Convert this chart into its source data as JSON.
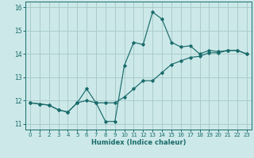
{
  "title": "",
  "xlabel": "Humidex (Indice chaleur)",
  "bg_color": "#cce8e8",
  "grid_color": "#aacccc",
  "line_color": "#1a6b6b",
  "xlim": [
    -0.5,
    23.5
  ],
  "ylim": [
    10.75,
    16.25
  ],
  "yticks": [
    11,
    12,
    13,
    14,
    15,
    16
  ],
  "xticks": [
    0,
    1,
    2,
    3,
    4,
    5,
    6,
    7,
    8,
    9,
    10,
    11,
    12,
    13,
    14,
    15,
    16,
    17,
    18,
    19,
    20,
    21,
    22,
    23
  ],
  "line1_x": [
    0,
    1,
    2,
    3,
    4,
    5,
    6,
    7,
    8,
    9,
    10,
    11,
    12,
    13,
    14,
    15,
    16,
    17,
    18,
    19,
    20,
    21,
    22,
    23
  ],
  "line1_y": [
    11.9,
    11.85,
    11.8,
    11.6,
    11.5,
    11.9,
    12.5,
    11.9,
    11.1,
    11.1,
    13.5,
    14.5,
    14.4,
    15.8,
    15.5,
    14.5,
    14.3,
    14.35,
    14.0,
    14.15,
    14.1,
    14.15,
    14.15,
    14.0
  ],
  "line2_x": [
    0,
    1,
    2,
    3,
    4,
    5,
    6,
    7,
    8,
    9,
    10,
    11,
    12,
    13,
    14,
    15,
    16,
    17,
    18,
    19,
    20,
    21,
    22,
    23
  ],
  "line2_y": [
    11.9,
    11.85,
    11.8,
    11.6,
    11.5,
    11.9,
    12.0,
    11.9,
    11.9,
    11.9,
    12.15,
    12.5,
    12.85,
    12.85,
    13.2,
    13.55,
    13.7,
    13.85,
    13.9,
    14.05,
    14.05,
    14.15,
    14.15,
    14.0
  ]
}
